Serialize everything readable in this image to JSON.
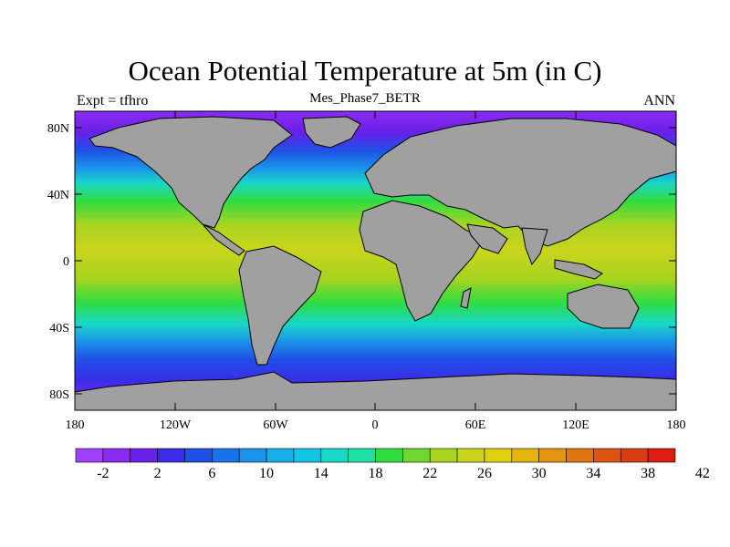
{
  "header": {
    "title": "Ocean Potential Temperature at 5m (in C)",
    "left_label": "Expt = tfhro",
    "center_label": "Mes_Phase7_BETR",
    "right_label": "ANN"
  },
  "map": {
    "lat_ticks": [
      "80N",
      "40N",
      "0",
      "40S",
      "80S"
    ],
    "lon_ticks": [
      "180",
      "120W",
      "60W",
      "0",
      "60E",
      "120E",
      "180"
    ],
    "land_color": "#a0a0a0"
  },
  "colorbar": {
    "labels": [
      "-2",
      "2",
      "6",
      "10",
      "14",
      "18",
      "22",
      "26",
      "30",
      "34",
      "38",
      "42"
    ],
    "colors": [
      "#a040ff",
      "#8a2cf0",
      "#6a20e8",
      "#3b2be8",
      "#1f50e6",
      "#1a72e8",
      "#1c92ea",
      "#18aee8",
      "#14c4e4",
      "#18d8c8",
      "#1ee0a0",
      "#30dc40",
      "#70d630",
      "#a8d420",
      "#cad41c",
      "#e0d010",
      "#e4b410",
      "#e49410",
      "#e07410",
      "#dc5410",
      "#d83c10",
      "#dc1c10"
    ]
  }
}
